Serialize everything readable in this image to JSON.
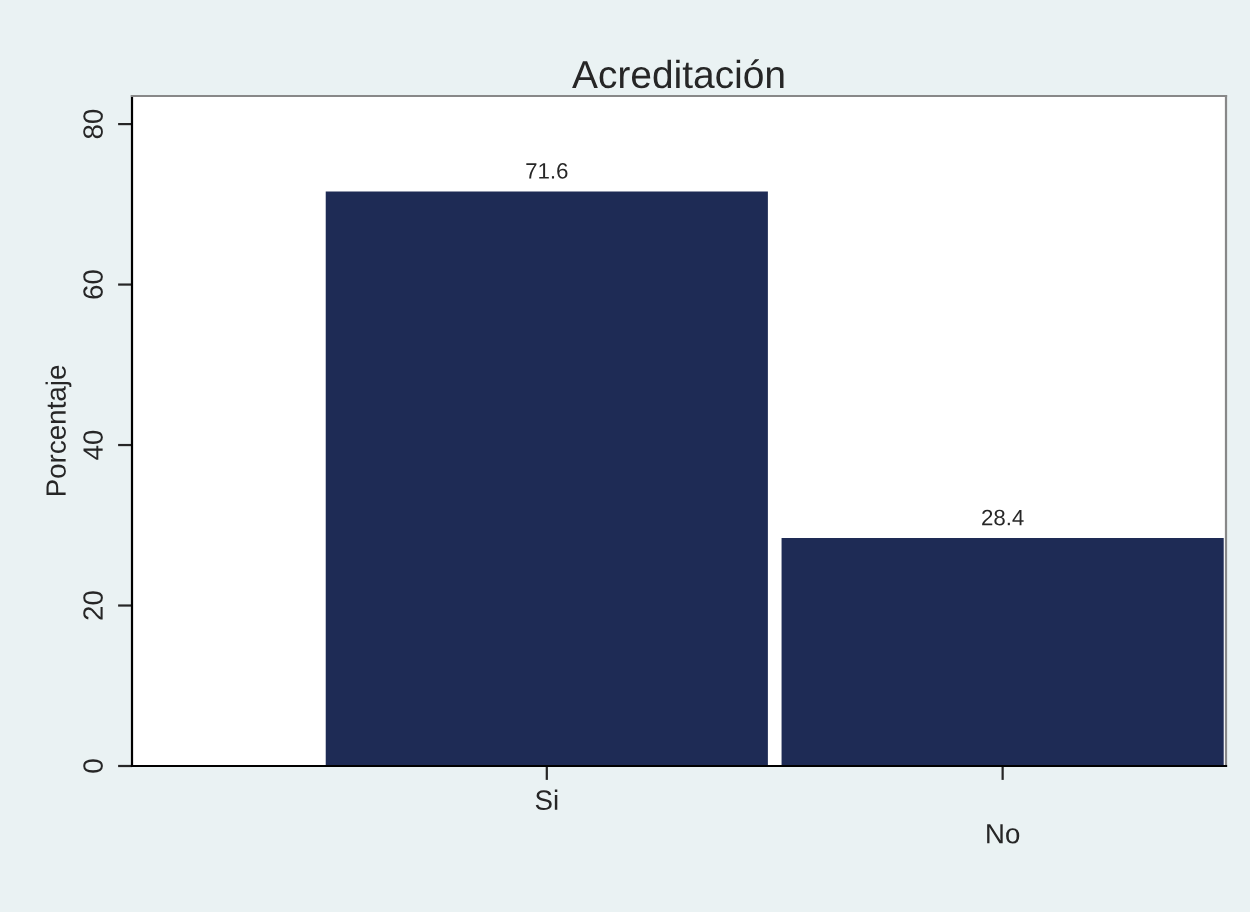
{
  "chart_data": {
    "type": "bar",
    "title": "Acreditación",
    "ylabel": "Porcentaje",
    "categories": [
      "Si",
      "No"
    ],
    "values": [
      71.6,
      28.4
    ],
    "color": "#1e2b55",
    "ylim": [
      0,
      83.5
    ],
    "yticks": [
      0,
      20,
      40,
      60,
      80
    ],
    "grid": false,
    "data_labels": true
  }
}
